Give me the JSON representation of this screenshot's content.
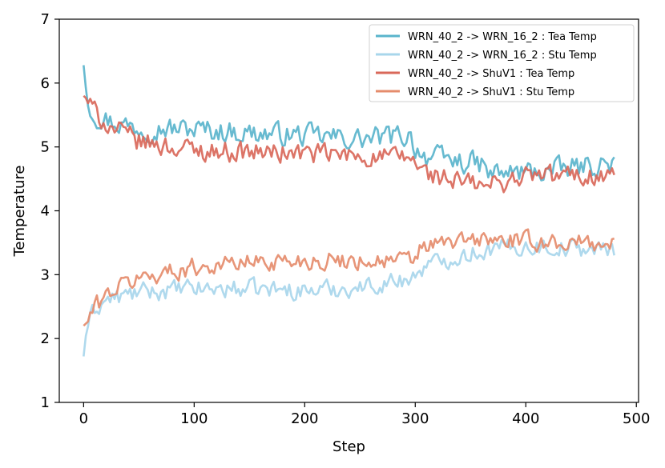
{
  "chart_data": {
    "type": "line",
    "title": "",
    "xlabel": "Step",
    "ylabel": "Temperature",
    "xlim": [
      -22,
      502
    ],
    "ylim": [
      1,
      7
    ],
    "xticks": [
      0,
      100,
      200,
      300,
      400,
      500
    ],
    "yticks": [
      1,
      2,
      3,
      4,
      5,
      6,
      7
    ],
    "xtick_labels": [
      "0",
      "100",
      "200",
      "300",
      "400",
      "500"
    ],
    "ytick_labels": [
      "1",
      "2",
      "3",
      "4",
      "5",
      "6",
      "7"
    ],
    "grid": false,
    "legend_position": "top-right",
    "x_range": [
      0,
      480
    ],
    "series": [
      {
        "name": "WRN_40_2 -> WRN_16_2 : Tea Temp",
        "color": "#5AB4CC",
        "noise": 0.16,
        "anchors": [
          [
            0,
            6.28
          ],
          [
            3,
            5.75
          ],
          [
            10,
            5.5
          ],
          [
            25,
            5.4
          ],
          [
            50,
            5.3
          ],
          [
            100,
            5.28
          ],
          [
            150,
            5.22
          ],
          [
            200,
            5.18
          ],
          [
            250,
            5.12
          ],
          [
            295,
            5.18
          ],
          [
            300,
            5.0
          ],
          [
            310,
            4.85
          ],
          [
            360,
            4.72
          ],
          [
            365,
            4.58
          ],
          [
            420,
            4.62
          ],
          [
            480,
            4.75
          ]
        ]
      },
      {
        "name": "WRN_40_2 -> WRN_16_2 : Stu Temp",
        "color": "#A8D6EB",
        "noise": 0.13,
        "anchors": [
          [
            0,
            1.72
          ],
          [
            3,
            2.2
          ],
          [
            10,
            2.45
          ],
          [
            20,
            2.6
          ],
          [
            50,
            2.72
          ],
          [
            100,
            2.78
          ],
          [
            150,
            2.78
          ],
          [
            200,
            2.75
          ],
          [
            250,
            2.8
          ],
          [
            298,
            2.95
          ],
          [
            305,
            3.1
          ],
          [
            330,
            3.25
          ],
          [
            360,
            3.38
          ],
          [
            400,
            3.45
          ],
          [
            480,
            3.38
          ]
        ]
      },
      {
        "name": "WRN_40_2 -> ShuV1 : Tea Temp",
        "color": "#D9685A",
        "noise": 0.15,
        "anchors": [
          [
            0,
            5.8
          ],
          [
            3,
            5.75
          ],
          [
            10,
            5.55
          ],
          [
            25,
            5.3
          ],
          [
            50,
            5.08
          ],
          [
            100,
            4.95
          ],
          [
            150,
            4.92
          ],
          [
            200,
            4.9
          ],
          [
            250,
            4.85
          ],
          [
            298,
            4.82
          ],
          [
            305,
            4.62
          ],
          [
            330,
            4.48
          ],
          [
            365,
            4.38
          ],
          [
            400,
            4.55
          ],
          [
            480,
            4.55
          ]
        ]
      },
      {
        "name": "WRN_40_2 -> ShuV1 : Stu Temp",
        "color": "#E58C6C",
        "noise": 0.13,
        "anchors": [
          [
            0,
            2.2
          ],
          [
            3,
            2.25
          ],
          [
            10,
            2.5
          ],
          [
            25,
            2.75
          ],
          [
            50,
            2.95
          ],
          [
            100,
            3.12
          ],
          [
            150,
            3.2
          ],
          [
            200,
            3.22
          ],
          [
            250,
            3.22
          ],
          [
            298,
            3.22
          ],
          [
            305,
            3.42
          ],
          [
            330,
            3.5
          ],
          [
            360,
            3.55
          ],
          [
            400,
            3.52
          ],
          [
            480,
            3.48
          ]
        ]
      }
    ]
  }
}
